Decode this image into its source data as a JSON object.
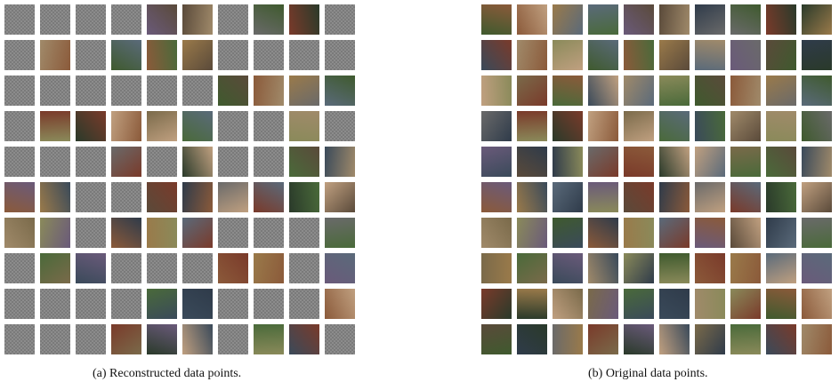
{
  "captions": {
    "reconstructed": "(a) Reconstructed data points.",
    "original": "(b) Original data points."
  },
  "grid": {
    "rows": 10,
    "cols": 10
  },
  "blank_color": "#8c8c8c",
  "photo_palette": [
    "#5a4a3a",
    "#3f5a2e",
    "#7a6a4a",
    "#2f3b4a",
    "#8b5a3a",
    "#4a6a3a",
    "#6a6a6a",
    "#9a7a4a",
    "#3a4a5a",
    "#7a3a2a",
    "#5a6a7a",
    "#a08a6a",
    "#2a3a2a",
    "#6a5a7a",
    "#8a8a5a",
    "#c0a080"
  ],
  "reconstructed_tiles": [
    [
      0,
      0,
      0,
      0,
      1,
      1,
      0,
      1,
      1,
      0
    ],
    [
      0,
      1,
      0,
      1,
      1,
      1,
      0,
      0,
      0,
      0
    ],
    [
      0,
      0,
      0,
      0,
      0,
      0,
      1,
      1,
      1,
      1
    ],
    [
      0,
      1,
      1,
      1,
      1,
      1,
      0,
      0,
      1,
      0
    ],
    [
      0,
      0,
      0,
      1,
      0,
      1,
      0,
      0,
      1,
      1
    ],
    [
      1,
      1,
      0,
      0,
      1,
      1,
      1,
      1,
      1,
      1
    ],
    [
      1,
      1,
      0,
      1,
      1,
      1,
      0,
      0,
      0,
      1
    ],
    [
      0,
      1,
      1,
      0,
      0,
      0,
      1,
      1,
      0,
      1
    ],
    [
      0,
      0,
      0,
      0,
      1,
      1,
      0,
      0,
      0,
      1
    ],
    [
      0,
      0,
      0,
      1,
      1,
      1,
      0,
      1,
      1,
      0
    ]
  ],
  "original_tiles": [
    [
      1,
      1,
      1,
      1,
      1,
      1,
      1,
      1,
      1,
      1
    ],
    [
      1,
      1,
      1,
      1,
      1,
      1,
      1,
      1,
      1,
      1
    ],
    [
      1,
      1,
      1,
      1,
      1,
      1,
      1,
      1,
      1,
      1
    ],
    [
      1,
      1,
      1,
      1,
      1,
      1,
      1,
      1,
      1,
      1
    ],
    [
      1,
      1,
      1,
      1,
      1,
      1,
      1,
      1,
      1,
      1
    ],
    [
      1,
      1,
      1,
      1,
      1,
      1,
      1,
      1,
      1,
      1
    ],
    [
      1,
      1,
      1,
      1,
      1,
      1,
      1,
      1,
      1,
      1
    ],
    [
      1,
      1,
      1,
      1,
      1,
      1,
      1,
      1,
      1,
      1
    ],
    [
      1,
      1,
      1,
      1,
      1,
      1,
      1,
      1,
      1,
      1
    ],
    [
      1,
      1,
      1,
      1,
      1,
      1,
      1,
      1,
      1,
      1
    ]
  ]
}
